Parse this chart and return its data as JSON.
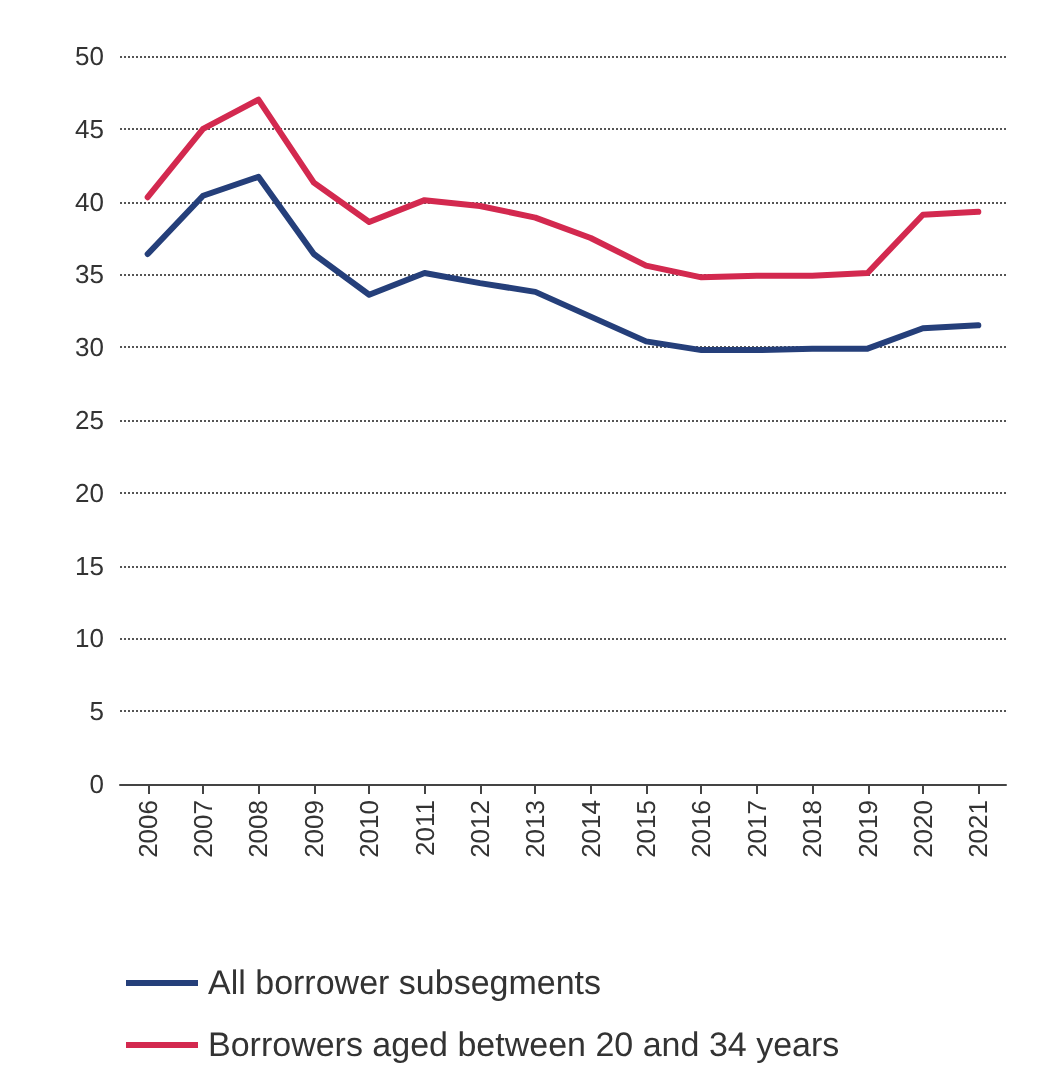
{
  "chart_data": {
    "type": "line",
    "categories": [
      "2006",
      "2007",
      "2008",
      "2009",
      "2010",
      "2011",
      "2012",
      "2013",
      "2014",
      "2015",
      "2016",
      "2017",
      "2018",
      "2019",
      "2020",
      "2021"
    ],
    "series": [
      {
        "name": "All borrower subsegments",
        "color": "#253f7a",
        "values": [
          36.4,
          40.4,
          41.7,
          36.4,
          33.6,
          35.1,
          34.4,
          33.8,
          32.1,
          30.4,
          29.8,
          29.8,
          29.9,
          29.9,
          31.3,
          31.5
        ]
      },
      {
        "name": "Borrowers aged between 20 and 34 years",
        "color": "#d3294f",
        "values": [
          40.3,
          45,
          47,
          41.3,
          38.6,
          40.1,
          39.7,
          38.9,
          37.5,
          35.6,
          34.8,
          34.9,
          34.9,
          35.1,
          39.1,
          39.3
        ]
      }
    ],
    "ylim": [
      0,
      50
    ],
    "yticks": [
      0,
      5,
      10,
      15,
      20,
      25,
      30,
      35,
      40,
      45,
      50
    ],
    "grid": "y",
    "legend": "bottom",
    "marker": "none",
    "line_style": "solid"
  }
}
